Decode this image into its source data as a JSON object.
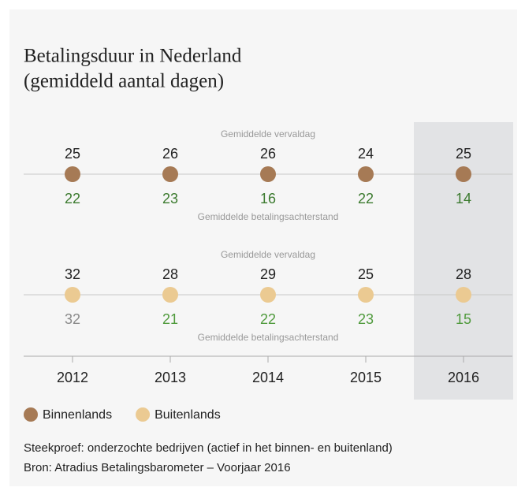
{
  "chart_data": {
    "type": "dot",
    "title": "Betalingsduur in Nederland",
    "subtitle": "(gemiddeld aantal dagen)",
    "categories": [
      "2012",
      "2013",
      "2014",
      "2015",
      "2016"
    ],
    "highlight": "2016",
    "upper_label": "Gemiddelde vervaldag",
    "lower_label": "Gemiddelde betalingsachterstand",
    "series": [
      {
        "name": "Binnenlands",
        "color": "#a67a55",
        "vervaldag": [
          25,
          26,
          26,
          24,
          25
        ],
        "achterstand": [
          22,
          23,
          16,
          22,
          14
        ],
        "achterstand_colors": [
          "#3b7a2e",
          "#3b7a2e",
          "#3b7a2e",
          "#3b7a2e",
          "#3b7a2e"
        ]
      },
      {
        "name": "Buitenlands",
        "color": "#ebca92",
        "vervaldag": [
          32,
          28,
          29,
          25,
          28
        ],
        "achterstand": [
          32,
          21,
          22,
          23,
          15
        ],
        "achterstand_colors": [
          "#8a8a8a",
          "#4f9a3c",
          "#4f9a3c",
          "#4f9a3c",
          "#4f9a3c"
        ]
      }
    ],
    "notes": [
      "Steekproef: onderzochte bedrijven (actief in het binnen- en buitenland)",
      "Bron: Atradius Betalingsbarometer – Voorjaar 2016"
    ]
  }
}
